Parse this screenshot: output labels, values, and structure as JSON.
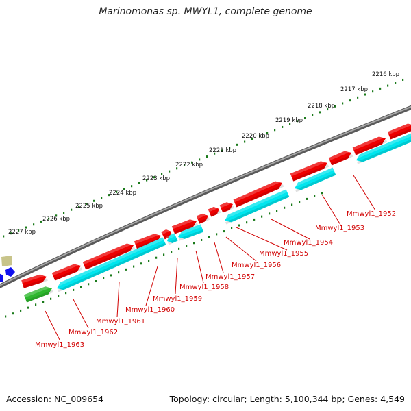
{
  "header": {
    "title": "Marinomonas sp. MWYL1, complete genome"
  },
  "footer": {
    "accession": "Accession: NC_009654",
    "summary": "Topology: circular; Length: 5,100,344 bp; Genes: 4,549"
  },
  "colors": {
    "forward_cds": "#ee0000",
    "reverse_cds": "#00e5ee",
    "rna_gene": "#2eb82e",
    "backbone": "#808080",
    "tick": "#1a7a1a",
    "label": "#d10000",
    "other_feature_tan": "#c8c48a",
    "other_feature_blue": "#1010ee"
  },
  "scale_labels": [
    "2216 kbp",
    "2217 kbp",
    "2218 kbp",
    "2219 kbp",
    "2220 kbp",
    "2221 kbp",
    "2222 kbp",
    "2223 kbp",
    "2224 kbp",
    "2225 kbp",
    "2226 kbp",
    "2227 kbp"
  ],
  "gene_labels": [
    "Mmwyl1_1952",
    "Mmwyl1_1953",
    "Mmwyl1_1954",
    "Mmwyl1_1955",
    "Mmwyl1_1956",
    "Mmwyl1_1957",
    "Mmwyl1_1958",
    "Mmwyl1_1959",
    "Mmwyl1_1960",
    "Mmwyl1_1961",
    "Mmwyl1_1962",
    "Mmwyl1_1963"
  ]
}
